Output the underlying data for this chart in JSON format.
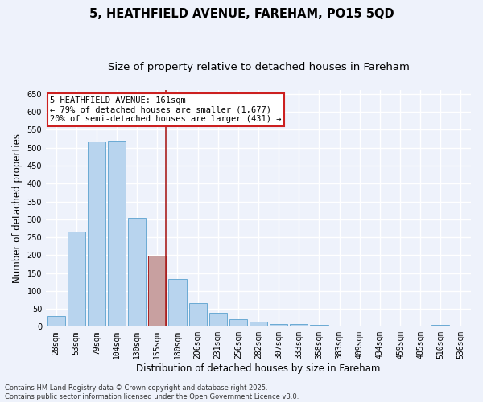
{
  "title_line1": "5, HEATHFIELD AVENUE, FAREHAM, PO15 5QD",
  "title_line2": "Size of property relative to detached houses in Fareham",
  "xlabel": "Distribution of detached houses by size in Fareham",
  "ylabel": "Number of detached properties",
  "categories": [
    "28sqm",
    "53sqm",
    "79sqm",
    "104sqm",
    "130sqm",
    "155sqm",
    "180sqm",
    "206sqm",
    "231sqm",
    "256sqm",
    "282sqm",
    "307sqm",
    "333sqm",
    "358sqm",
    "383sqm",
    "409sqm",
    "434sqm",
    "459sqm",
    "485sqm",
    "510sqm",
    "536sqm"
  ],
  "values": [
    30,
    265,
    518,
    520,
    305,
    198,
    133,
    67,
    40,
    20,
    15,
    8,
    7,
    5,
    4,
    1,
    3,
    1,
    1,
    5,
    3
  ],
  "bar_color": "#b8d4ee",
  "bar_edge_color": "#6aaad4",
  "highlight_bar_index": 5,
  "highlight_bar_color": "#c8a0a0",
  "highlight_bar_edge_color": "#aa2020",
  "vline_color": "#aa2020",
  "ylim_max": 660,
  "yticks": [
    0,
    50,
    100,
    150,
    200,
    250,
    300,
    350,
    400,
    450,
    500,
    550,
    600,
    650
  ],
  "annotation_text": "5 HEATHFIELD AVENUE: 161sqm\n← 79% of detached houses are smaller (1,677)\n20% of semi-detached houses are larger (431) →",
  "annotation_box_facecolor": "#ffffff",
  "annotation_box_edgecolor": "#cc2020",
  "footer_line1": "Contains HM Land Registry data © Crown copyright and database right 2025.",
  "footer_line2": "Contains public sector information licensed under the Open Government Licence v3.0.",
  "background_color": "#eef2fb",
  "grid_color": "#ffffff",
  "title_fontsize": 10.5,
  "subtitle_fontsize": 9.5,
  "axis_label_fontsize": 8.5,
  "tick_fontsize": 7,
  "annot_fontsize": 7.5,
  "footer_fontsize": 6
}
